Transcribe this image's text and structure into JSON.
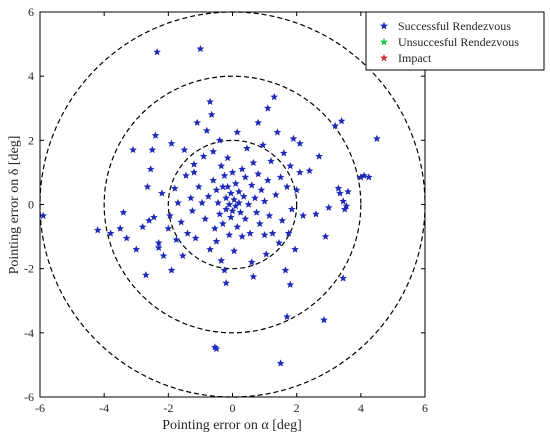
{
  "chart_data": {
    "type": "scatter",
    "xlabel": "Pointing error on α [deg]",
    "ylabel": "Pointing error on δ [deg]",
    "xlim": [
      -6,
      6
    ],
    "ylim": [
      -6,
      6
    ],
    "x_ticks": [
      "-6",
      "-4",
      "-2",
      "0",
      "2",
      "4",
      "6"
    ],
    "y_ticks": [
      "-6",
      "-4",
      "-2",
      "0",
      "2",
      "4",
      "6"
    ],
    "grid": false,
    "legend_position": "top-right",
    "circles": [
      {
        "radius": 2,
        "style": "dashed",
        "color": "#000000"
      },
      {
        "radius": 4,
        "style": "dashed",
        "color": "#000000"
      },
      {
        "radius": 6,
        "style": "dashed",
        "color": "#000000"
      }
    ],
    "series": [
      {
        "name": "Successful Rendezvous",
        "marker": "*",
        "color": "#1f2ab8",
        "points": [
          [
            -5.9,
            -0.35
          ],
          [
            -4.2,
            -0.8
          ],
          [
            -3.8,
            -0.9
          ],
          [
            -3.5,
            -0.75
          ],
          [
            -3.4,
            -0.25
          ],
          [
            -3.3,
            -1.05
          ],
          [
            -3.1,
            1.7
          ],
          [
            -3.0,
            -1.4
          ],
          [
            -2.8,
            -0.7
          ],
          [
            -2.7,
            -2.2
          ],
          [
            -2.65,
            0.55
          ],
          [
            -2.6,
            -0.5
          ],
          [
            -2.55,
            1.1
          ],
          [
            -2.5,
            1.7
          ],
          [
            -2.45,
            -0.4
          ],
          [
            -2.4,
            2.15
          ],
          [
            -2.35,
            4.75
          ],
          [
            -2.3,
            -1.2
          ],
          [
            -2.2,
            0.35
          ],
          [
            -2.15,
            -1.6
          ],
          [
            -2.0,
            -0.75
          ],
          [
            -1.95,
            -0.35
          ],
          [
            -1.9,
            1.9
          ],
          [
            -1.8,
            0.5
          ],
          [
            -1.75,
            -1.1
          ],
          [
            -1.7,
            0.05
          ],
          [
            -1.6,
            -0.55
          ],
          [
            -1.55,
            -1.6
          ],
          [
            -1.5,
            1.7
          ],
          [
            -1.45,
            0.9
          ],
          [
            -1.4,
            -0.9
          ],
          [
            -1.3,
            0.2
          ],
          [
            -1.25,
            -0.2
          ],
          [
            -1.2,
            1.0
          ],
          [
            -1.15,
            -1.05
          ],
          [
            -1.1,
            2.55
          ],
          [
            -1.05,
            0.55
          ],
          [
            -1.0,
            4.85
          ],
          [
            -0.95,
            0.05
          ],
          [
            -0.9,
            1.5
          ],
          [
            -0.85,
            -0.45
          ],
          [
            -0.8,
            2.3
          ],
          [
            -0.75,
            0.25
          ],
          [
            -0.7,
            -1.4
          ],
          [
            -0.7,
            3.2
          ],
          [
            -0.65,
            2.8
          ],
          [
            -0.6,
            1.65
          ],
          [
            -0.6,
            0.75
          ],
          [
            -0.55,
            -0.75
          ],
          [
            -0.5,
            0.45
          ],
          [
            -0.5,
            -1.15
          ],
          [
            -0.45,
            0.05
          ],
          [
            -0.4,
            2.0
          ],
          [
            -0.4,
            -0.3
          ],
          [
            -0.35,
            -1.75
          ],
          [
            -0.35,
            1.2
          ],
          [
            -0.3,
            0.55
          ],
          [
            -0.3,
            -0.6
          ],
          [
            -0.25,
            0.9
          ],
          [
            -0.25,
            -2.05
          ],
          [
            -0.2,
            0.2
          ],
          [
            -0.2,
            -0.15
          ],
          [
            -0.15,
            1.45
          ],
          [
            -0.15,
            0.55
          ],
          [
            -0.1,
            -0.95
          ],
          [
            -0.1,
            0.0
          ],
          [
            -0.05,
            0.35
          ],
          [
            -0.05,
            -0.4
          ],
          [
            0.0,
            1.0
          ],
          [
            0.0,
            -0.2
          ],
          [
            0.05,
            0.15
          ],
          [
            0.05,
            -1.45
          ],
          [
            0.1,
            0.65
          ],
          [
            0.1,
            -0.05
          ],
          [
            0.15,
            2.25
          ],
          [
            0.15,
            -0.7
          ],
          [
            0.2,
            0.4
          ],
          [
            0.2,
            0.05
          ],
          [
            0.25,
            -0.25
          ],
          [
            0.3,
            1.1
          ],
          [
            0.3,
            -1.0
          ],
          [
            0.35,
            0.25
          ],
          [
            0.4,
            0.85
          ],
          [
            0.4,
            -0.45
          ],
          [
            0.45,
            1.75
          ],
          [
            0.5,
            0.0
          ],
          [
            0.55,
            -0.9
          ],
          [
            0.6,
            0.6
          ],
          [
            0.6,
            -1.8
          ],
          [
            0.65,
            1.3
          ],
          [
            0.7,
            0.2
          ],
          [
            0.75,
            -0.25
          ],
          [
            0.8,
            0.95
          ],
          [
            0.8,
            2.55
          ],
          [
            0.85,
            -0.6
          ],
          [
            0.9,
            0.45
          ],
          [
            0.95,
            1.85
          ],
          [
            1.0,
            -0.95
          ],
          [
            1.0,
            0.1
          ],
          [
            1.05,
            -1.55
          ],
          [
            1.1,
            0.75
          ],
          [
            1.1,
            3.0
          ],
          [
            1.15,
            -0.35
          ],
          [
            1.2,
            1.35
          ],
          [
            1.25,
            -0.9
          ],
          [
            1.3,
            3.35
          ],
          [
            1.35,
            0.3
          ],
          [
            1.4,
            2.25
          ],
          [
            1.45,
            -1.2
          ],
          [
            1.5,
            0.85
          ],
          [
            1.55,
            -0.5
          ],
          [
            1.6,
            1.6
          ],
          [
            1.65,
            -2.05
          ],
          [
            1.7,
            0.55
          ],
          [
            1.75,
            -0.9
          ],
          [
            1.8,
            1.2
          ],
          [
            1.8,
            -2.5
          ],
          [
            1.85,
            -0.15
          ],
          [
            1.9,
            2.05
          ],
          [
            1.95,
            -1.4
          ],
          [
            2.0,
            0.45
          ],
          [
            2.1,
            1.9
          ],
          [
            2.2,
            -0.35
          ],
          [
            2.4,
            1.05
          ],
          [
            2.6,
            -0.3
          ],
          [
            2.7,
            1.5
          ],
          [
            2.9,
            -1.0
          ],
          [
            3.0,
            -0.1
          ],
          [
            3.2,
            2.45
          ],
          [
            3.3,
            0.5
          ],
          [
            3.35,
            0.35
          ],
          [
            3.4,
            2.6
          ],
          [
            3.45,
            0.1
          ],
          [
            3.5,
            -0.15
          ],
          [
            3.55,
            -0.05
          ],
          [
            3.6,
            0.4
          ],
          [
            4.0,
            0.85
          ],
          [
            4.1,
            0.9
          ],
          [
            4.25,
            0.85
          ],
          [
            4.5,
            2.05
          ],
          [
            -0.55,
            -4.45
          ],
          [
            -0.5,
            -4.5
          ],
          [
            1.5,
            -4.95
          ],
          [
            1.7,
            -3.5
          ],
          [
            2.85,
            -3.6
          ],
          [
            3.45,
            -2.3
          ],
          [
            -2.3,
            -1.35
          ],
          [
            -1.9,
            -2.05
          ],
          [
            -1.2,
            1.25
          ],
          [
            0.65,
            -2.25
          ],
          [
            -0.2,
            -2.45
          ],
          [
            2.1,
            1.0
          ]
        ]
      },
      {
        "name": "Unsuccesful Rendezvous",
        "marker": "*",
        "color": "#27c93f",
        "points": []
      },
      {
        "name": "Impact",
        "marker": "*",
        "color": "#d43a3a",
        "points": []
      }
    ]
  }
}
